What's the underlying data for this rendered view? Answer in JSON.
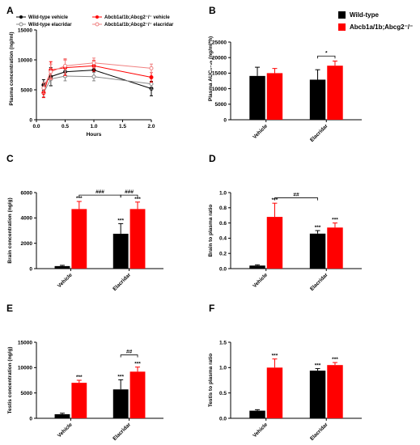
{
  "colors": {
    "wt": "#000000",
    "ko": "#ff0000",
    "wt_elacridar": "#888888",
    "ko_elacridar": "#f08080"
  },
  "chart_data": [
    {
      "panel": "A",
      "type": "line",
      "xlabel": "Hours",
      "ylabel": "Plasma concentration (ng/ml)",
      "xlim": [
        0,
        2.0
      ],
      "ylim": [
        0,
        15000
      ],
      "xticks": [
        "0.0",
        "0.5",
        "1.0",
        "1.5",
        "2.0"
      ],
      "yticks": [
        "0",
        "5000",
        "10000",
        "15000"
      ],
      "legend": [
        {
          "label": "Wild-type vehicle",
          "color": "#000000",
          "marker": "filled-circle"
        },
        {
          "label": "Wild-type elacridar",
          "color": "#888888",
          "marker": "open-circle"
        },
        {
          "label": "Abcb1a/1b;Abcg2⁻/⁻ vehicle",
          "color": "#ff0000",
          "marker": "filled-circle"
        },
        {
          "label": "Abcb1a/1b;Abcg2⁻/⁻ elacridar",
          "color": "#f08080",
          "marker": "open-circle"
        }
      ],
      "series": [
        {
          "name": "Wild-type vehicle",
          "color": "#000000",
          "x": [
            0.125,
            0.25,
            0.5,
            1.0,
            2.0
          ],
          "y": [
            5800,
            7200,
            8000,
            8300,
            5200
          ],
          "err": [
            900,
            1500,
            900,
            1000,
            1200
          ],
          "filled": true
        },
        {
          "name": "Wild-type elacridar",
          "color": "#888888",
          "x": [
            0.125,
            0.25,
            0.5,
            1.0,
            2.0
          ],
          "y": [
            4500,
            6800,
            7300,
            7200,
            6000
          ],
          "err": [
            700,
            1200,
            800,
            700,
            900
          ],
          "filled": false
        },
        {
          "name": "Abcb1a/1b;Abcg2⁻/⁻ vehicle",
          "color": "#ff0000",
          "x": [
            0.125,
            0.25,
            0.5,
            1.0,
            2.0
          ],
          "y": [
            4500,
            8300,
            8700,
            9000,
            7100
          ],
          "err": [
            800,
            1400,
            1300,
            900,
            800
          ],
          "filled": true
        },
        {
          "name": "Abcb1a/1b;Abcg2⁻/⁻ elacridar",
          "color": "#f08080",
          "x": [
            0.125,
            0.25,
            0.5,
            1.0,
            2.0
          ],
          "y": [
            5300,
            8000,
            9000,
            9500,
            8600
          ],
          "err": [
            900,
            1300,
            1200,
            800,
            700
          ],
          "filled": false
        }
      ]
    },
    {
      "panel": "B",
      "type": "bar",
      "ylabel": "Plasma AUC₀₋₂ₕ (ng/ml*h)",
      "ylim": [
        0,
        25000
      ],
      "yticks": [
        "0",
        "5000",
        "10000",
        "15000",
        "20000",
        "25000"
      ],
      "categories": [
        "Vehicle",
        "Elacridar"
      ],
      "legend": [
        {
          "label": "Wild-type",
          "color": "#000000"
        },
        {
          "label": "Abcb1a/1b;Abcg2⁻/⁻",
          "color": "#ff0000"
        }
      ],
      "series": [
        {
          "name": "Wild-type",
          "color": "#000000",
          "values": [
            14100,
            12900
          ],
          "err": [
            2800,
            3200
          ]
        },
        {
          "name": "Abcb1a/1b;Abcg2⁻/⁻",
          "color": "#ff0000",
          "values": [
            15000,
            17400
          ],
          "err": [
            1500,
            1500
          ]
        }
      ],
      "stars": [
        [
          "",
          ""
        ],
        [
          "",
          ""
        ]
      ],
      "brackets": [
        {
          "cat": 1,
          "from": 0,
          "to": 1,
          "label": "*",
          "y": 20500
        }
      ]
    },
    {
      "panel": "C",
      "type": "bar",
      "ylabel": "Brain concentration (ng/g)",
      "ylim": [
        0,
        6000
      ],
      "yticks": [
        "0",
        "2000",
        "4000",
        "6000"
      ],
      "categories": [
        "Vehicle",
        "Elacridar"
      ],
      "series": [
        {
          "name": "Wild-type",
          "color": "#000000",
          "values": [
            200,
            2750
          ],
          "err": [
            60,
            800
          ]
        },
        {
          "name": "Abcb1a/1b;Abcg2⁻/⁻",
          "color": "#ff0000",
          "values": [
            4700,
            4700
          ],
          "err": [
            600,
            550
          ]
        }
      ],
      "stars": [
        [
          "",
          "***"
        ],
        [
          "***",
          "***"
        ]
      ],
      "brackets": [
        {
          "fromCat": 0,
          "fromSer": 1,
          "toCat": 1,
          "toSer": 0,
          "label": "###",
          "y": 5800
        },
        {
          "fromCat": 1,
          "fromSer": 0,
          "toCat": 1,
          "toSer": 1,
          "label": "###",
          "y": 5800
        }
      ]
    },
    {
      "panel": "D",
      "type": "bar",
      "ylabel": "Brain to plasma ratio",
      "ylim": [
        0,
        1.0
      ],
      "yticks": [
        "0.0",
        "0.2",
        "0.4",
        "0.6",
        "0.8",
        "1.0"
      ],
      "categories": [
        "Vehicle",
        "Elacridar"
      ],
      "series": [
        {
          "name": "Wild-type",
          "color": "#000000",
          "values": [
            0.04,
            0.46
          ],
          "err": [
            0.01,
            0.04
          ]
        },
        {
          "name": "Abcb1a/1b;Abcg2⁻/⁻",
          "color": "#ff0000",
          "values": [
            0.68,
            0.54
          ],
          "err": [
            0.18,
            0.06
          ]
        }
      ],
      "stars": [
        [
          "",
          "***"
        ],
        [
          "***",
          "***"
        ]
      ],
      "brackets": [
        {
          "fromCat": 0,
          "fromSer": 1,
          "toCat": 1,
          "toSer": 0,
          "label": "##",
          "y": 0.93
        }
      ]
    },
    {
      "panel": "E",
      "type": "bar",
      "ylabel": "Testis concentration (ng/g)",
      "ylim": [
        0,
        15000
      ],
      "yticks": [
        "0",
        "5000",
        "10000",
        "15000"
      ],
      "categories": [
        "Vehicle",
        "Elacridar"
      ],
      "series": [
        {
          "name": "Wild-type",
          "color": "#000000",
          "values": [
            800,
            5700
          ],
          "err": [
            200,
            1900
          ]
        },
        {
          "name": "Abcb1a/1b;Abcg2⁻/⁻",
          "color": "#ff0000",
          "values": [
            7000,
            9200
          ],
          "err": [
            500,
            900
          ]
        }
      ],
      "stars": [
        [
          "",
          "***"
        ],
        [
          "***",
          "***"
        ]
      ],
      "brackets": [
        {
          "fromCat": 1,
          "fromSer": 0,
          "toCat": 1,
          "toSer": 1,
          "label": "##",
          "y": 12500
        }
      ]
    },
    {
      "panel": "F",
      "type": "bar",
      "ylabel": "Testis to plasma ratio",
      "ylim": [
        0,
        1.5
      ],
      "yticks": [
        "0.0",
        "0.5",
        "1.0",
        "1.5"
      ],
      "categories": [
        "Vehicle",
        "Elacridar"
      ],
      "series": [
        {
          "name": "Wild-type",
          "color": "#000000",
          "values": [
            0.15,
            0.94
          ],
          "err": [
            0.02,
            0.04
          ]
        },
        {
          "name": "Abcb1a/1b;Abcg2⁻/⁻",
          "color": "#ff0000",
          "values": [
            1.0,
            1.05
          ],
          "err": [
            0.17,
            0.05
          ]
        }
      ],
      "stars": [
        [
          "",
          "***"
        ],
        [
          "***",
          "***"
        ]
      ],
      "brackets": []
    }
  ]
}
